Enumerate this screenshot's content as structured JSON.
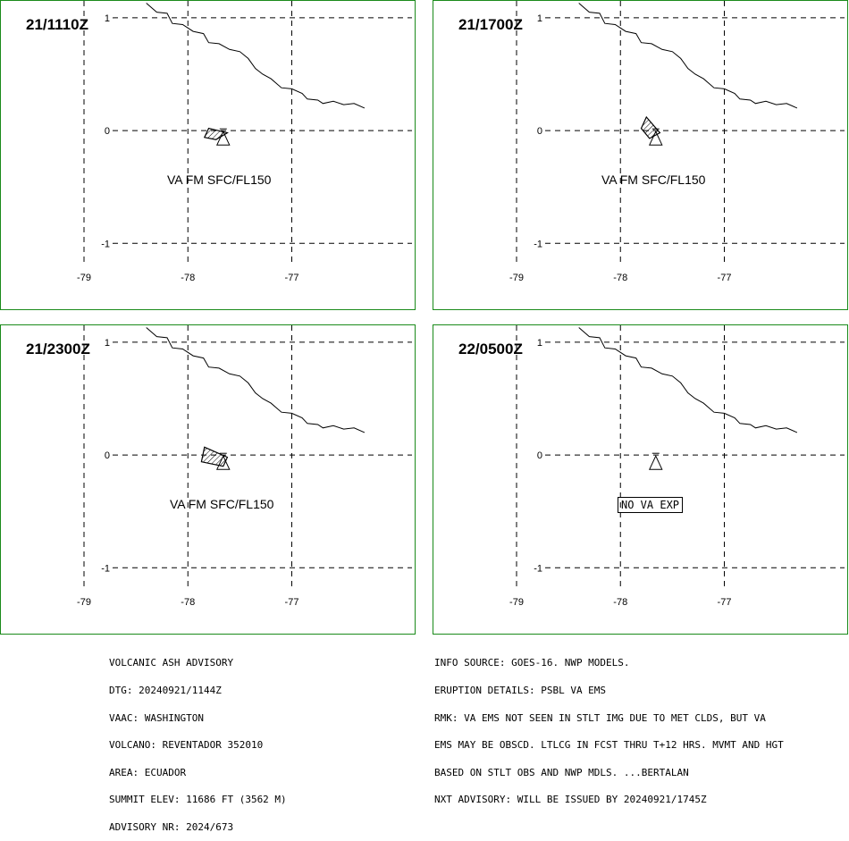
{
  "panels": [
    {
      "id": "p1",
      "timestamp": "21/1110Z",
      "label": "VA FM SFC/FL150",
      "boxed": false,
      "cloud": [
        [
          -77.8,
          0.02
        ],
        [
          -77.62,
          -0.02
        ],
        [
          -77.73,
          -0.08
        ],
        [
          -77.84,
          -0.06
        ]
      ]
    },
    {
      "id": "p2",
      "timestamp": "21/1700Z",
      "label": "VA FM SFC/FL150",
      "boxed": false,
      "cloud": [
        [
          -77.75,
          0.12
        ],
        [
          -77.62,
          -0.02
        ],
        [
          -77.72,
          -0.07
        ],
        [
          -77.8,
          0.02
        ]
      ]
    },
    {
      "id": "p3",
      "timestamp": "21/2300Z",
      "label": "VA FM SFC/FL150",
      "boxed": false,
      "cloud": [
        [
          -77.84,
          0.07
        ],
        [
          -77.62,
          -0.02
        ],
        [
          -77.66,
          -0.1
        ],
        [
          -77.87,
          -0.06
        ]
      ]
    },
    {
      "id": "p4",
      "timestamp": "22/0500Z",
      "label": "NO VA EXP",
      "boxed": true,
      "cloud": []
    }
  ],
  "axes": {
    "lon_ticks": [
      "-79",
      "-78",
      "-77"
    ],
    "lat_ticks": [
      "1",
      "0",
      "-1"
    ]
  },
  "map": {
    "lon_min": -79.8,
    "lon_max": -75.8,
    "lat_min": -1.6,
    "lat_max": 1.15,
    "grid_lons": [
      -79,
      -78,
      -77
    ],
    "grid_lats": [
      1,
      0,
      -1
    ],
    "volcano": [
      -77.66,
      -0.08
    ],
    "coast": [
      [
        -78.4,
        1.13
      ],
      [
        -78.3,
        1.05
      ],
      [
        -78.2,
        1.04
      ],
      [
        -78.15,
        0.95
      ],
      [
        -78.05,
        0.94
      ],
      [
        -77.95,
        0.88
      ],
      [
        -77.85,
        0.86
      ],
      [
        -77.8,
        0.78
      ],
      [
        -77.7,
        0.77
      ],
      [
        -77.6,
        0.72
      ],
      [
        -77.5,
        0.7
      ],
      [
        -77.42,
        0.64
      ],
      [
        -77.35,
        0.55
      ],
      [
        -77.28,
        0.5
      ],
      [
        -77.2,
        0.46
      ],
      [
        -77.1,
        0.38
      ],
      [
        -77.0,
        0.37
      ],
      [
        -76.9,
        0.33
      ],
      [
        -76.85,
        0.28
      ],
      [
        -76.75,
        0.27
      ],
      [
        -76.7,
        0.24
      ],
      [
        -76.6,
        0.26
      ],
      [
        -76.5,
        0.23
      ],
      [
        -76.4,
        0.24
      ],
      [
        -76.3,
        0.2
      ]
    ]
  },
  "advisory_left": [
    "VOLCANIC ASH ADVISORY",
    "DTG: 20240921/1144Z",
    "VAAC: WASHINGTON",
    "VOLCANO: REVENTADOR 352010",
    "AREA: ECUADOR",
    "SUMMIT ELEV: 11686 FT (3562 M)",
    "ADVISORY NR: 2024/673"
  ],
  "advisory_right": [
    "INFO SOURCE: GOES-16. NWP MODELS.",
    "ERUPTION DETAILS: PSBL VA EMS",
    "RMK: VA EMS NOT SEEN IN STLT IMG DUE TO MET CLDS, BUT VA",
    "EMS MAY BE OBSCD. LTLCG IN FCST THRU T+12 HRS. MVMT AND HGT",
    "BASED ON STLT OBS AND NWP MDLS. ...BERTALAN",
    "NXT ADVISORY: WILL BE ISSUED BY 20240921/1745Z"
  ],
  "colors": {
    "frame": "#1a8a1a",
    "lines": "#000000",
    "background": "#ffffff"
  }
}
